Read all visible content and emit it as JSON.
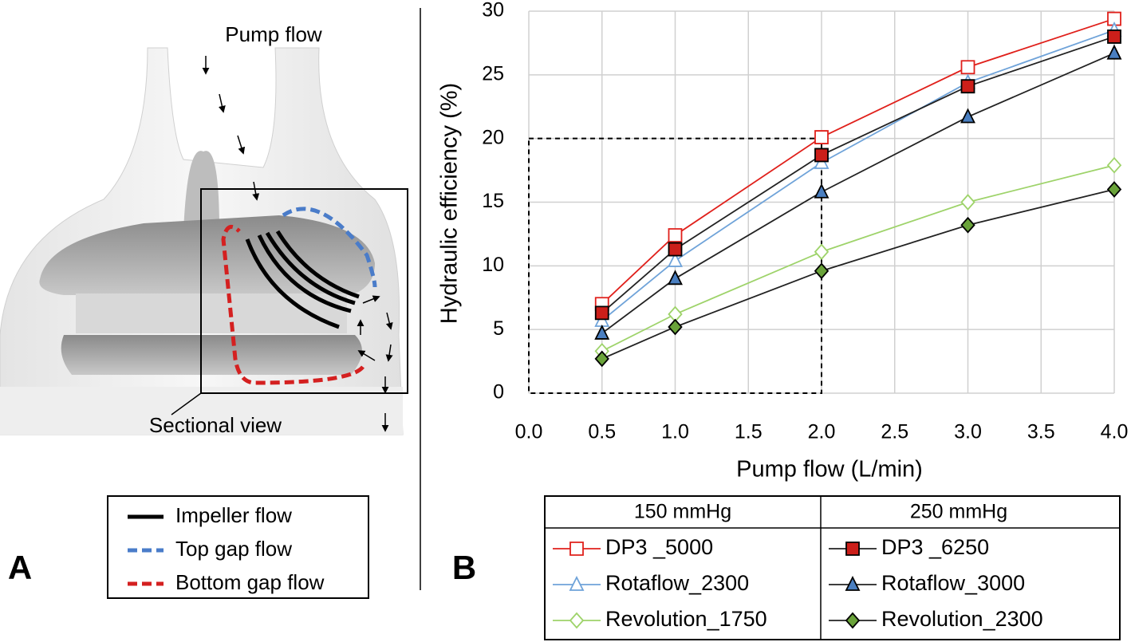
{
  "panel_labels": [
    "A",
    "B"
  ],
  "diagram": {
    "pump_flow": "Pump flow",
    "sectional_view": "Sectional view",
    "legend": [
      {
        "label": "Impeller flow",
        "color": "#000000",
        "dashed": false
      },
      {
        "label": "Top gap flow",
        "color": "#4a7cc9",
        "dashed": true
      },
      {
        "label": "Bottom gap flow",
        "color": "#d42020",
        "dashed": true
      }
    ]
  },
  "chart_data": {
    "type": "line",
    "x_label": "Pump flow (L/min)",
    "y_label": "Hydraulic efficiency (%)",
    "x": [
      0.5,
      1,
      2,
      3,
      4
    ],
    "xlim": [
      0,
      4
    ],
    "ylim": [
      0,
      30
    ],
    "xticks": [
      {
        "value": 0,
        "label": "0.0"
      },
      0.5,
      {
        "value": 1,
        "label": "1.0"
      },
      1.5,
      {
        "value": 2,
        "label": "2.0"
      },
      2.5,
      {
        "value": 3,
        "label": "3.0"
      },
      3.5,
      {
        "value": 4,
        "label": "4.0"
      }
    ],
    "yticks": [
      0,
      5,
      10,
      15,
      20,
      25,
      30
    ],
    "grid": true,
    "reference_box": {
      "x": [
        0,
        2
      ],
      "y": [
        0,
        20
      ]
    },
    "legend_columns": [
      "150 mmHg",
      "250 mmHg"
    ],
    "series": [
      {
        "name": "DP3 _5000",
        "color": "#e0201b",
        "marker": "square",
        "marker_color": "#e0201b",
        "filled": false,
        "values": [
          7.0,
          12.4,
          20.1,
          25.6,
          29.4
        ]
      },
      {
        "name": "Rotaflow_2300",
        "color": "#6fa3d9",
        "marker": "triangle",
        "marker_color": "#6fa3d9",
        "filled": false,
        "values": [
          5.7,
          10.4,
          18.1,
          24.4,
          28.5
        ]
      },
      {
        "name": "Revolution_1750",
        "color": "#9ed36a",
        "marker": "diamond",
        "marker_color": "#9ed36a",
        "filled": false,
        "values": [
          3.3,
          6.2,
          11.1,
          15.0,
          17.9
        ]
      },
      {
        "name": "DP3 _6250",
        "color": "#222222",
        "marker": "square",
        "marker_color": "#cc1f1a",
        "filled": true,
        "values": [
          6.3,
          11.3,
          18.7,
          24.1,
          28.0
        ]
      },
      {
        "name": "Rotaflow_3000",
        "color": "#222222",
        "marker": "triangle",
        "marker_color": "#4a7fc1",
        "filled": true,
        "values": [
          4.7,
          9.0,
          15.8,
          21.7,
          26.7
        ]
      },
      {
        "name": "Revolution_2300",
        "color": "#222222",
        "marker": "diamond",
        "marker_color": "#6aa33a",
        "filled": true,
        "values": [
          2.7,
          5.2,
          9.6,
          13.2,
          16.0
        ]
      }
    ]
  }
}
